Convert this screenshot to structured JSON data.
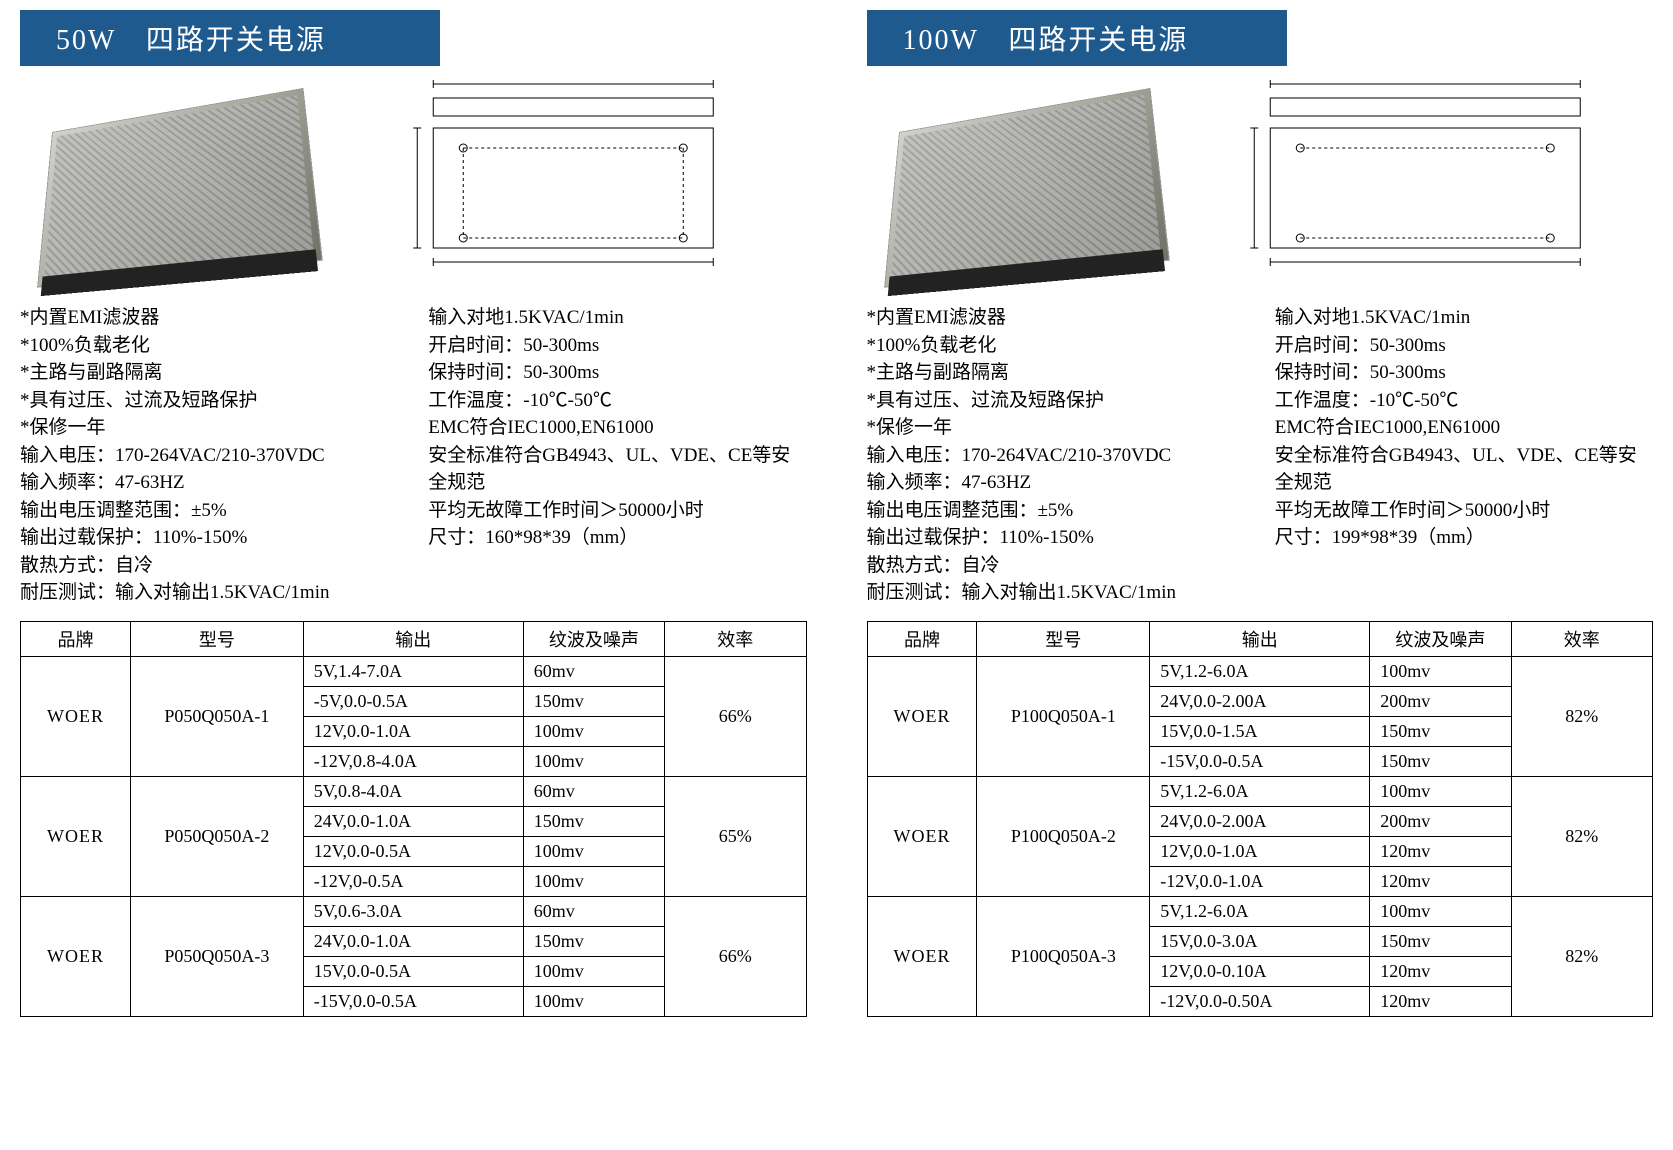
{
  "colors": {
    "title_bg": "#1e5a8e",
    "title_fg": "#ffffff",
    "text": "#000000",
    "border": "#000000"
  },
  "left": {
    "title": "50W　四路开关电源",
    "specs_left": [
      "*内置EMI滤波器",
      "*100%负载老化",
      "*主路与副路隔离",
      "*具有过压、过流及短路保护",
      "*保修一年",
      "输入电压：170-264VAC/210-370VDC",
      "输入频率：47-63HZ",
      "输出电压调整范围：±5%",
      "输出过载保护：110%-150%",
      "散热方式：自冷",
      "耐压测试：输入对输出1.5KVAC/1min"
    ],
    "specs_right": [
      "输入对地1.5KVAC/1min",
      "开启时间：50-300ms",
      "保持时间：50-300ms",
      "工作温度：-10℃-50℃",
      "EMC符合IEC1000,EN61000",
      "安全标准符合GB4943、UL、VDE、CE等安全规范",
      "平均无故障工作时间＞50000小时",
      "尺寸：160*98*39（mm）"
    ],
    "table": {
      "columns": [
        "品牌",
        "型号",
        "输出",
        "纹波及噪声",
        "效率"
      ],
      "col_widths": [
        "14%",
        "22%",
        "28%",
        "18%",
        "18%"
      ],
      "groups": [
        {
          "brand": "WOER",
          "model": "P050Q050A-1",
          "efficiency": "66%",
          "rows": [
            {
              "output": "5V,1.4-7.0A",
              "ripple": "60mv"
            },
            {
              "output": "-5V,0.0-0.5A",
              "ripple": "150mv"
            },
            {
              "output": "12V,0.0-1.0A",
              "ripple": "100mv"
            },
            {
              "output": "-12V,0.8-4.0A",
              "ripple": "100mv"
            }
          ]
        },
        {
          "brand": "WOER",
          "model": "P050Q050A-2",
          "efficiency": "65%",
          "rows": [
            {
              "output": "5V,0.8-4.0A",
              "ripple": "60mv"
            },
            {
              "output": "24V,0.0-1.0A",
              "ripple": "150mv"
            },
            {
              "output": "12V,0.0-0.5A",
              "ripple": "100mv"
            },
            {
              "output": "-12V,0-0.5A",
              "ripple": "100mv"
            }
          ]
        },
        {
          "brand": "WOER",
          "model": "P050Q050A-3",
          "efficiency": "66%",
          "rows": [
            {
              "output": "5V,0.6-3.0A",
              "ripple": "60mv"
            },
            {
              "output": "24V,0.0-1.0A",
              "ripple": "150mv"
            },
            {
              "output": "15V,0.0-0.5A",
              "ripple": "100mv"
            },
            {
              "output": "-15V,0.0-0.5A",
              "ripple": "100mv"
            }
          ]
        }
      ]
    }
  },
  "right": {
    "title": "100W　四路开关电源",
    "specs_left": [
      "*内置EMI滤波器",
      "*100%负载老化",
      "*主路与副路隔离",
      "*具有过压、过流及短路保护",
      "*保修一年",
      "输入电压：170-264VAC/210-370VDC",
      "输入频率：47-63HZ",
      "输出电压调整范围：±5%",
      "输出过载保护：110%-150%",
      "散热方式：自冷",
      "耐压测试：输入对输出1.5KVAC/1min"
    ],
    "specs_right": [
      "输入对地1.5KVAC/1min",
      "开启时间：50-300ms",
      "保持时间：50-300ms",
      "工作温度：-10℃-50℃",
      "EMC符合IEC1000,EN61000",
      "安全标准符合GB4943、UL、VDE、CE等安全规范",
      "平均无故障工作时间＞50000小时",
      "尺寸：199*98*39（mm）"
    ],
    "table": {
      "columns": [
        "品牌",
        "型号",
        "输出",
        "纹波及噪声",
        "效率"
      ],
      "col_widths": [
        "14%",
        "22%",
        "28%",
        "18%",
        "18%"
      ],
      "groups": [
        {
          "brand": "WOER",
          "model": "P100Q050A-1",
          "efficiency": "82%",
          "rows": [
            {
              "output": "5V,1.2-6.0A",
              "ripple": "100mv"
            },
            {
              "output": "24V,0.0-2.00A",
              "ripple": "200mv"
            },
            {
              "output": "15V,0.0-1.5A",
              "ripple": "150mv"
            },
            {
              "output": "-15V,0.0-0.5A",
              "ripple": "150mv"
            }
          ]
        },
        {
          "brand": "WOER",
          "model": "P100Q050A-2",
          "efficiency": "82%",
          "rows": [
            {
              "output": "5V,1.2-6.0A",
              "ripple": "100mv"
            },
            {
              "output": "24V,0.0-2.00A",
              "ripple": "200mv"
            },
            {
              "output": "12V,0.0-1.0A",
              "ripple": "120mv"
            },
            {
              "output": "-12V,0.0-1.0A",
              "ripple": "120mv"
            }
          ]
        },
        {
          "brand": "WOER",
          "model": "P100Q050A-3",
          "efficiency": "82%",
          "rows": [
            {
              "output": "5V,1.2-6.0A",
              "ripple": "100mv"
            },
            {
              "output": "15V,0.0-3.0A",
              "ripple": "150mv"
            },
            {
              "output": "12V,0.0-0.10A",
              "ripple": "120mv"
            },
            {
              "output": "-12V,0.0-0.50A",
              "ripple": "120mv"
            }
          ]
        }
      ]
    }
  }
}
